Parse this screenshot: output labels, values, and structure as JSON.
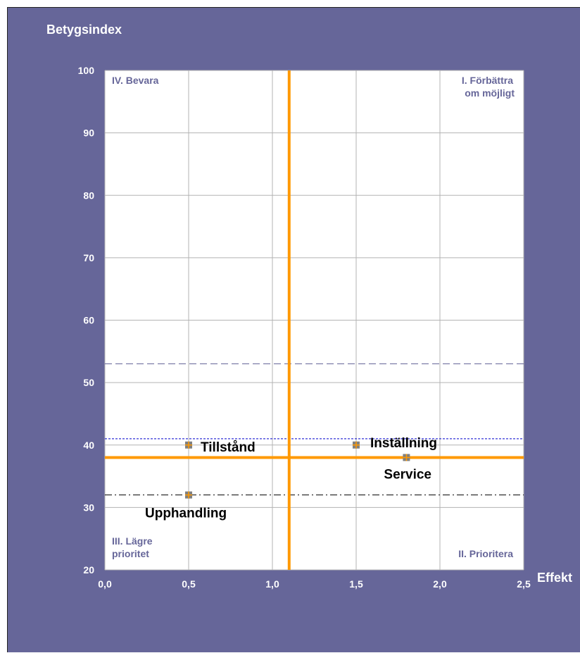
{
  "chart_data": {
    "type": "scatter",
    "title": "",
    "ylabel": "Betygsindex",
    "xlabel": "Effekt",
    "xlim": [
      0,
      2.5
    ],
    "ylim": [
      20,
      100
    ],
    "x_ticks": [
      "0,0",
      "0,5",
      "1,0",
      "1,5",
      "2,0",
      "2,5"
    ],
    "y_ticks": [
      "20",
      "30",
      "40",
      "50",
      "60",
      "70",
      "80",
      "90",
      "100"
    ],
    "grid": true,
    "points": [
      {
        "label": "Tillstånd",
        "x": 0.5,
        "y": 40
      },
      {
        "label": "Upphandling",
        "x": 0.5,
        "y": 32
      },
      {
        "label": "Inställning",
        "x": 1.5,
        "y": 40
      },
      {
        "label": "Service",
        "x": 1.8,
        "y": 38
      }
    ],
    "quadrant_lines": {
      "x": 1.1,
      "y": 38,
      "color": "#ff9900"
    },
    "reference_lines": [
      {
        "y": 53,
        "style": "dashed",
        "color": "#666699"
      },
      {
        "y": 41,
        "style": "dotted",
        "color": "#0000cc"
      },
      {
        "y": 32,
        "style": "dash-dot",
        "color": "#000000"
      }
    ],
    "quadrants": {
      "top_left": "IV. Bevara",
      "top_right_line1": "I. Förbättra",
      "top_right_line2": "om möjligt",
      "bottom_left_line1": "III. Lägre",
      "bottom_left_line2": "prioritet",
      "bottom_right": "II. Prioritera"
    },
    "colors": {
      "background": "#666699",
      "plot": "#ffffff",
      "marker": "#808080",
      "marker_cross": "#ff9900"
    }
  }
}
